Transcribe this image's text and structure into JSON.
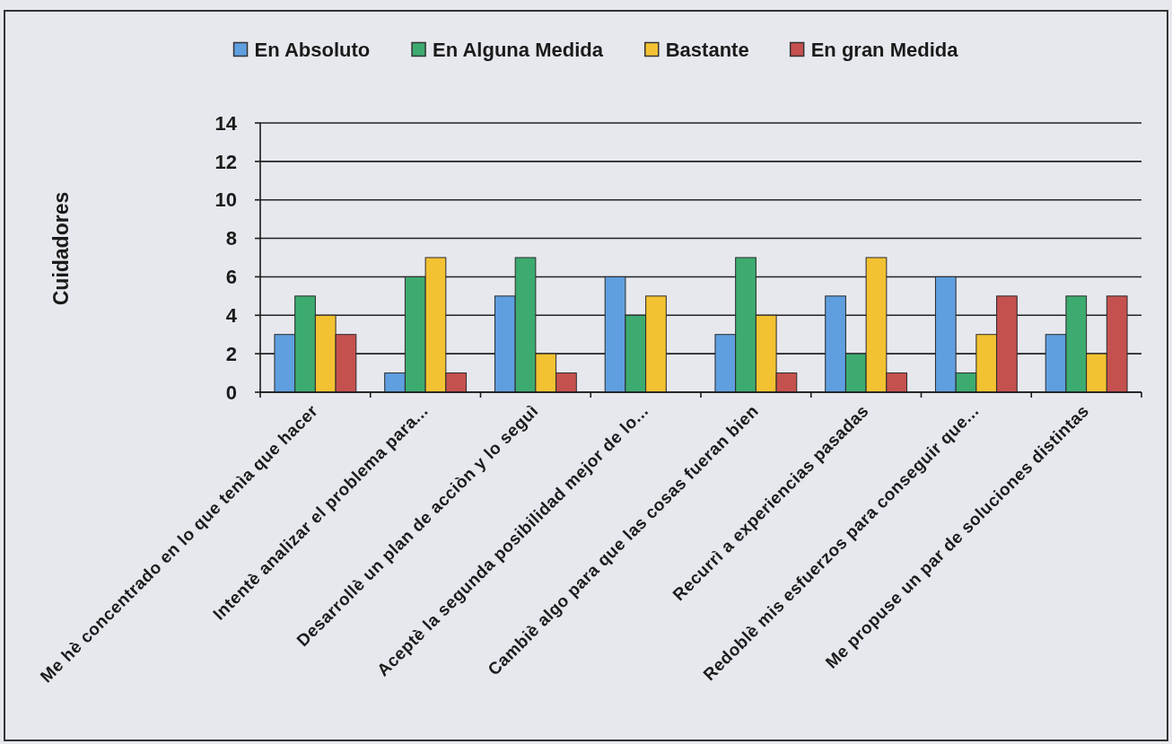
{
  "chart_data": {
    "type": "bar",
    "categories": [
      "Me hè concentrado en lo que tenìa que hacer",
      "Intentè analizar el problema para...",
      "Desarrollè un plan de acciòn y lo seguì",
      "Aceptè la segunda posibilidad mejor de lo...",
      "Cambiè algo para que las cosas fueran bien",
      "Recurrì a experiencias pasadas",
      "Redoblè mis esfuerzos para conseguir que...",
      "Me propuse un par de soluciones distintas"
    ],
    "series": [
      {
        "name": "En Absoluto",
        "color": "#5f9fe0",
        "values": [
          3,
          1,
          5,
          6,
          3,
          5,
          6,
          3
        ]
      },
      {
        "name": "En Alguna Medida",
        "color": "#3dab70",
        "values": [
          5,
          6,
          7,
          4,
          7,
          2,
          1,
          5
        ]
      },
      {
        "name": "Bastante",
        "color": "#f3c232",
        "values": [
          4,
          7,
          2,
          5,
          4,
          7,
          3,
          2
        ]
      },
      {
        "name": "En gran Medida",
        "color": "#c5514f",
        "values": [
          3,
          1,
          1,
          null,
          1,
          1,
          5,
          5
        ]
      }
    ],
    "ylabel": "Cuidadores",
    "ylim": [
      0,
      14
    ],
    "yticks": [
      0,
      2,
      4,
      6,
      8,
      10,
      12,
      14
    ],
    "grid": "y",
    "legend": "top"
  }
}
